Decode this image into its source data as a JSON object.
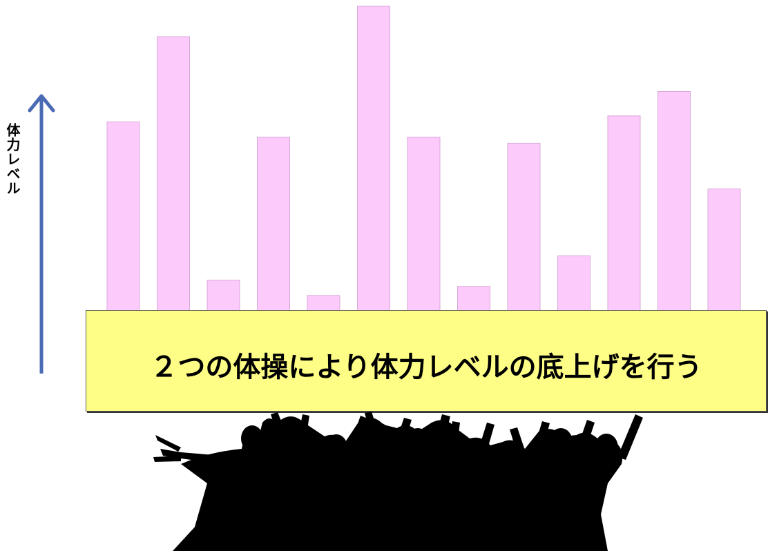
{
  "chart_data": {
    "type": "bar",
    "ylabel": "体力レベル",
    "categories": [
      "",
      "",
      "",
      "",
      "",
      "",
      "",
      "",
      "",
      "",
      "",
      "",
      ""
    ],
    "values": [
      62,
      90,
      10,
      57,
      5,
      100,
      57,
      8,
      55,
      18,
      64,
      72,
      40
    ],
    "ylim": [
      0,
      100
    ],
    "grid": false,
    "bar_color": "#fccbfc",
    "bar_edge_color": "#d8a8d8"
  },
  "base_label": "２つの体操により体力レベルの底上げを行う",
  "colors": {
    "arrow": "#4a6ab4",
    "base_fill": "#fefe86",
    "silhouette": "#000000"
  },
  "icons": {
    "crowd": "people-silhouette-icon",
    "axis_arrow": "up-arrow-icon"
  }
}
